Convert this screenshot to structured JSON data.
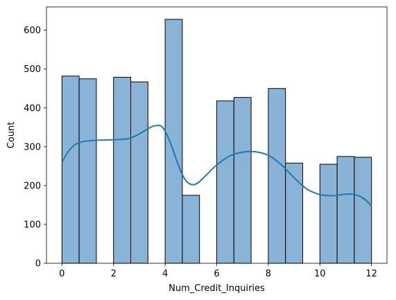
{
  "chart_data": {
    "type": "bar",
    "subtype": "histogram-with-kde",
    "xlabel": "Num_Credit_Inquiries",
    "ylabel": "Count",
    "xlim": [
      -0.6,
      12.6
    ],
    "ylim": [
      0,
      660
    ],
    "xticks": [
      0,
      2,
      4,
      6,
      8,
      10,
      12
    ],
    "yticks": [
      0,
      100,
      200,
      300,
      400,
      500,
      600
    ],
    "bin_width": 0.6667,
    "bins": [
      {
        "x0": 0.0,
        "x1": 0.6667,
        "count": 482
      },
      {
        "x0": 0.6667,
        "x1": 1.3333,
        "count": 475
      },
      {
        "x0": 1.3333,
        "x1": 2.0,
        "count": 0
      },
      {
        "x0": 2.0,
        "x1": 2.6667,
        "count": 479
      },
      {
        "x0": 2.6667,
        "x1": 3.3333,
        "count": 467
      },
      {
        "x0": 3.3333,
        "x1": 4.0,
        "count": 0
      },
      {
        "x0": 4.0,
        "x1": 4.6667,
        "count": 628
      },
      {
        "x0": 4.6667,
        "x1": 5.3333,
        "count": 175
      },
      {
        "x0": 5.3333,
        "x1": 6.0,
        "count": 0
      },
      {
        "x0": 6.0,
        "x1": 6.6667,
        "count": 418
      },
      {
        "x0": 6.6667,
        "x1": 7.3333,
        "count": 427
      },
      {
        "x0": 7.3333,
        "x1": 8.0,
        "count": 0
      },
      {
        "x0": 8.0,
        "x1": 8.6667,
        "count": 450
      },
      {
        "x0": 8.6667,
        "x1": 9.3333,
        "count": 258
      },
      {
        "x0": 9.3333,
        "x1": 10.0,
        "count": 0
      },
      {
        "x0": 10.0,
        "x1": 10.6667,
        "count": 255
      },
      {
        "x0": 10.6667,
        "x1": 11.3333,
        "count": 275
      },
      {
        "x0": 11.3333,
        "x1": 12.0,
        "count": 273
      }
    ],
    "kde": {
      "x": [
        0.0,
        0.25,
        0.5,
        0.75,
        1.0,
        1.5,
        2.0,
        2.5,
        2.75,
        3.0,
        3.25,
        3.5,
        3.75,
        3.9,
        4.1,
        4.3,
        4.5,
        4.75,
        5.0,
        5.25,
        5.5,
        6.0,
        6.5,
        7.0,
        7.5,
        8.0,
        8.5,
        9.0,
        9.5,
        10.0,
        10.5,
        11.0,
        11.25,
        11.5,
        11.75,
        12.0
      ],
      "y": [
        260,
        288,
        305,
        312,
        315,
        317,
        318,
        320,
        325,
        333,
        343,
        352,
        355,
        350,
        327,
        293,
        255,
        218,
        203,
        206,
        221,
        253,
        276,
        286,
        287,
        278,
        254,
        220,
        191,
        177,
        174,
        178,
        178,
        174,
        164,
        148
      ]
    },
    "colors": {
      "bar_fill": "#89b4d8",
      "bar_edge": "#000000",
      "kde_line": "#1f77b4"
    },
    "grid": false,
    "legend": "none"
  }
}
